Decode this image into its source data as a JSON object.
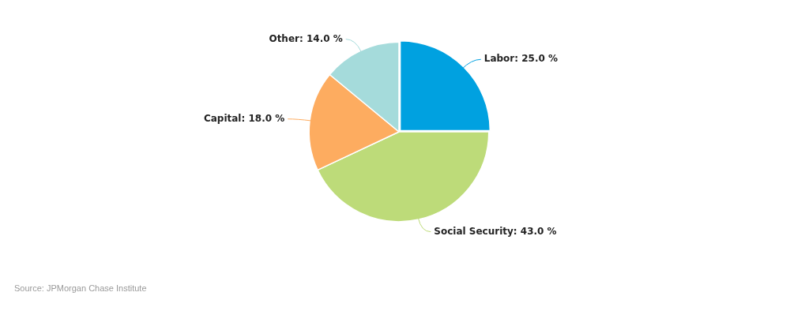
{
  "chart_data": {
    "type": "pie",
    "categories": [
      "Labor",
      "Social Security",
      "Capital",
      "Other"
    ],
    "values": [
      25.0,
      43.0,
      18.0,
      14.0
    ],
    "value_labels": [
      "Labor: 25.0 %",
      "Social Security: 43.0 %",
      "Capital: 18.0 %",
      "Other: 14.0 %"
    ],
    "colors": [
      "#00a1e0",
      "#bddb79",
      "#fdac60",
      "#a5dbdb"
    ],
    "data_labels": true,
    "source": "Source: JPMorgan Chase Institute"
  }
}
